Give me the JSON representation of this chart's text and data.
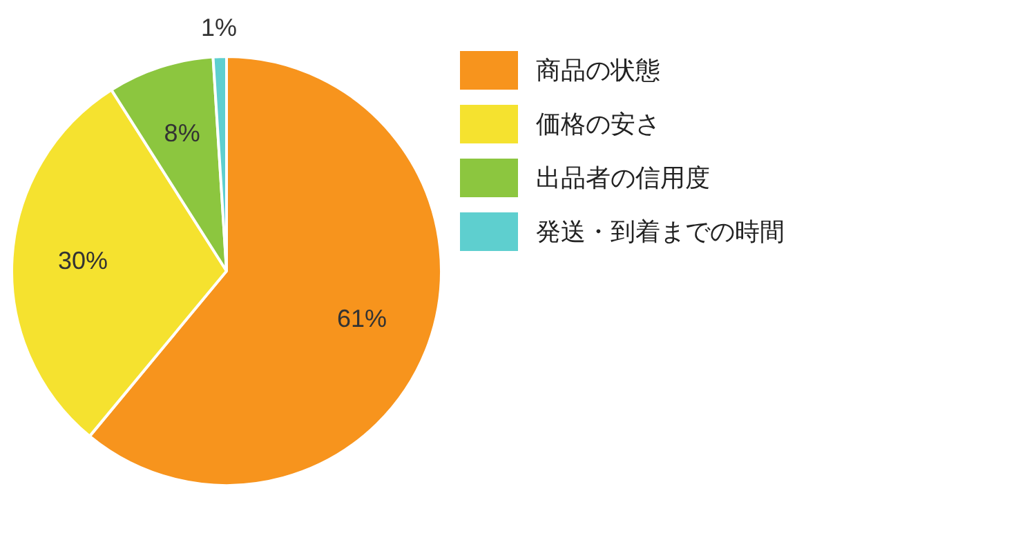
{
  "chart_data": {
    "type": "pie",
    "categories": [
      "商品の状態",
      "価格の安さ",
      "出品者の信用度",
      "発送・到着までの時間"
    ],
    "values": [
      61,
      30,
      8,
      1
    ],
    "colors": [
      "#f7941d",
      "#f5e22f",
      "#8cc63f",
      "#5ecfcf"
    ],
    "value_labels": [
      "61%",
      "30%",
      "8%",
      "1%"
    ],
    "legend": "right"
  }
}
